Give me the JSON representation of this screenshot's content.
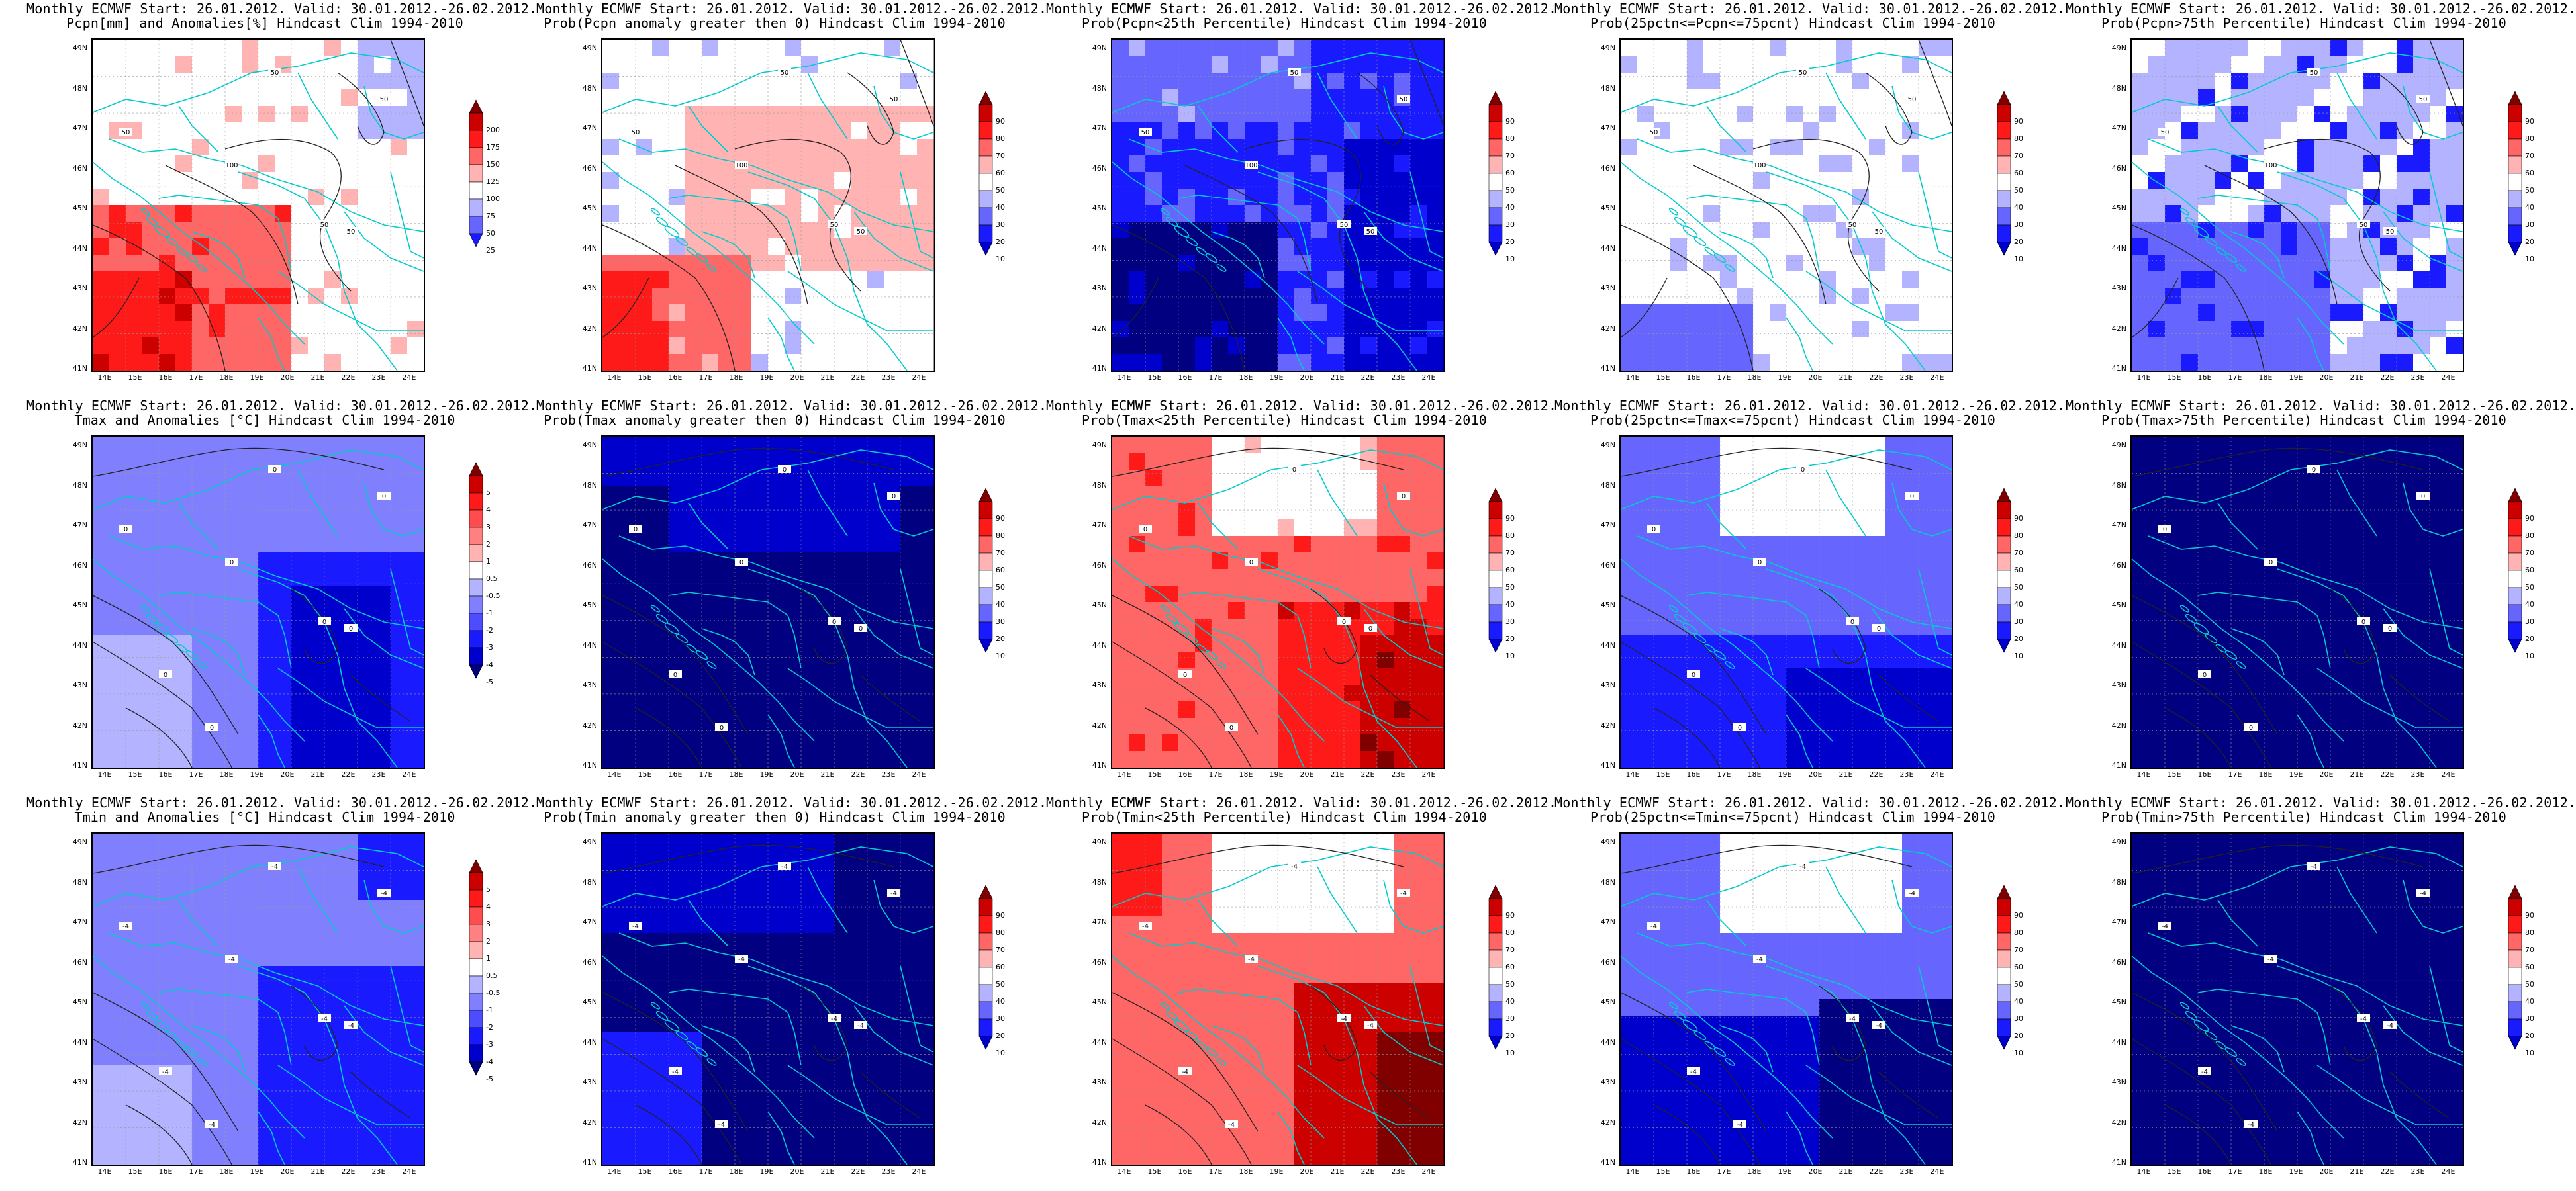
{
  "panels": [
    {
      "id": "pcpn-anom",
      "title1": "Monthly ECMWF Start: 26.01.2012. Valid: 30.01.2012.-26.02.2012.",
      "title2": "Pcpn[mm] and Anomalies[%] Hindcast Clim 1994-2010",
      "scale": "precip",
      "field": "pcpn-anom",
      "colorbar": [
        "200",
        "175",
        "150",
        "125",
        "100",
        "75",
        "50",
        "25"
      ],
      "contour_labels": [
        "50",
        "50",
        "50",
        "100",
        "50",
        "50"
      ]
    },
    {
      "id": "pcpn-prob-gt0",
      "title1": "Monthly ECMWF Start: 26.01.2012. Valid: 30.01.2012.-26.02.2012.",
      "title2": "Prob(Pcpn anomaly greater then 0) Hindcast Clim 1994-2010",
      "scale": "prob",
      "field": "pcpn-gt0",
      "colorbar": [
        "90",
        "80",
        "70",
        "60",
        "50",
        "40",
        "30",
        "20",
        "10"
      ],
      "contour_labels": [
        "50",
        "50",
        "50",
        "100",
        "50",
        "50"
      ]
    },
    {
      "id": "pcpn-prob-lt25",
      "title1": "Monthly ECMWF Start: 26.01.2012. Valid: 30.01.2012.-26.02.2012.",
      "title2": "Prob(Pcpn<25th Percentile) Hindcast Clim 1994-2010",
      "scale": "prob",
      "field": "pcpn-lt25",
      "colorbar": [
        "90",
        "80",
        "70",
        "60",
        "50",
        "40",
        "30",
        "20",
        "10"
      ],
      "contour_labels": [
        "50",
        "50",
        "50",
        "100",
        "50",
        "50"
      ]
    },
    {
      "id": "pcpn-prob-mid",
      "title1": "Monthly ECMWF Start: 26.01.2012. Valid: 30.01.2012.-26.02.2012.",
      "title2": "Prob(25pctn<=Pcpn<=75pcnt) Hindcast Clim 1994-2010",
      "scale": "prob",
      "field": "pcpn-mid",
      "colorbar": [
        "90",
        "80",
        "70",
        "60",
        "50",
        "40",
        "30",
        "20",
        "10"
      ],
      "contour_labels": [
        "50",
        "50",
        "50",
        "100",
        "50",
        "50"
      ]
    },
    {
      "id": "pcpn-prob-gt75",
      "title1": "Monthly ECMWF Start: 26.01.2012. Valid: 30.01.2012.-26.02.2012.",
      "title2": "Prob(Pcpn>75th Percentile) Hindcast Clim 1994-2010",
      "scale": "prob",
      "field": "pcpn-gt75",
      "colorbar": [
        "90",
        "80",
        "70",
        "60",
        "50",
        "40",
        "30",
        "20",
        "10"
      ],
      "contour_labels": [
        "50",
        "50",
        "50",
        "100",
        "50",
        "50"
      ]
    },
    {
      "id": "tmax-anom",
      "title1": "Monthly ECMWF Start: 26.01.2012. Valid: 30.01.2012.-26.02.2012.",
      "title2": "Tmax and Anomalies [°C] Hindcast Clim 1994-2010",
      "scale": "temp",
      "field": "tmax-anom",
      "colorbar": [
        "5",
        "4",
        "3",
        "2",
        "1",
        "0.5",
        "-0.5",
        "-1",
        "-2",
        "-3",
        "-4",
        "-5"
      ],
      "contour_labels": [
        "0",
        "0",
        "0",
        "0",
        "0",
        "0",
        "0",
        "0"
      ]
    },
    {
      "id": "tmax-prob-gt0",
      "title1": "Monthly ECMWF Start: 26.01.2012. Valid: 30.01.2012.-26.02.2012.",
      "title2": "Prob(Tmax anomaly greater then 0) Hindcast Clim 1994-2010",
      "scale": "prob",
      "field": "tmax-gt0",
      "colorbar": [
        "90",
        "80",
        "70",
        "60",
        "50",
        "40",
        "30",
        "20",
        "10"
      ],
      "contour_labels": [
        "0",
        "0",
        "0",
        "0",
        "0",
        "0",
        "0",
        "0"
      ]
    },
    {
      "id": "tmax-prob-lt25",
      "title1": "Monthly ECMWF Start: 26.01.2012. Valid: 30.01.2012.-26.02.2012.",
      "title2": "Prob(Tmax<25th Percentile) Hindcast Clim 1994-2010",
      "scale": "prob",
      "field": "tmax-lt25",
      "colorbar": [
        "90",
        "80",
        "70",
        "60",
        "50",
        "40",
        "30",
        "20",
        "10"
      ],
      "contour_labels": [
        "0",
        "0",
        "0",
        "0",
        "0",
        "0",
        "0",
        "0"
      ]
    },
    {
      "id": "tmax-prob-mid",
      "title1": "Monthly ECMWF Start: 26.01.2012. Valid: 30.01.2012.-26.02.2012.",
      "title2": "Prob(25pctn<=Tmax<=75pcnt) Hindcast Clim 1994-2010",
      "scale": "prob",
      "field": "tmax-mid",
      "colorbar": [
        "90",
        "80",
        "70",
        "60",
        "50",
        "40",
        "30",
        "20",
        "10"
      ],
      "contour_labels": [
        "0",
        "0",
        "0",
        "0",
        "0",
        "0",
        "0",
        "0"
      ]
    },
    {
      "id": "tmax-prob-gt75",
      "title1": "Monthly ECMWF Start: 26.01.2012. Valid: 30.01.2012.-26.02.2012.",
      "title2": "Prob(Tmax>75th Percentile) Hindcast Clim 1994-2010",
      "scale": "prob",
      "field": "tmax-gt75",
      "colorbar": [
        "90",
        "80",
        "70",
        "60",
        "50",
        "40",
        "30",
        "20",
        "10"
      ],
      "contour_labels": [
        "0",
        "0",
        "0",
        "0",
        "0",
        "0",
        "0",
        "0"
      ]
    },
    {
      "id": "tmin-anom",
      "title1": "Monthly ECMWF Start: 26.01.2012. Valid: 30.01.2012.-26.02.2012.",
      "title2": "Tmin and Anomalies [°C] Hindcast Clim 1994-2010",
      "scale": "temp",
      "field": "tmin-anom",
      "colorbar": [
        "5",
        "4",
        "3",
        "2",
        "1",
        "0.5",
        "-0.5",
        "-1",
        "-2",
        "-3",
        "-4",
        "-5"
      ],
      "contour_labels": [
        "-4",
        "-4",
        "-4",
        "-4",
        "-4",
        "-4",
        "-4",
        "-4"
      ]
    },
    {
      "id": "tmin-prob-gt0",
      "title1": "Monthly ECMWF Start: 26.01.2012. Valid: 30.01.2012.-26.02.2012.",
      "title2": "Prob(Tmin anomaly greater then 0) Hindcast Clim 1994-2010",
      "scale": "prob",
      "field": "tmin-gt0",
      "colorbar": [
        "90",
        "80",
        "70",
        "60",
        "50",
        "40",
        "30",
        "20",
        "10"
      ],
      "contour_labels": [
        "-4",
        "-4",
        "-4",
        "-4",
        "-4",
        "-4",
        "-4",
        "-4"
      ]
    },
    {
      "id": "tmin-prob-lt25",
      "title1": "Monthly ECMWF Start: 26.01.2012. Valid: 30.01.2012.-26.02.2012.",
      "title2": "Prob(Tmin<25th Percentile) Hindcast Clim 1994-2010",
      "scale": "prob",
      "field": "tmin-lt25",
      "colorbar": [
        "90",
        "80",
        "70",
        "60",
        "50",
        "40",
        "30",
        "20",
        "10"
      ],
      "contour_labels": [
        "-4",
        "-4",
        "-4",
        "-4",
        "-4",
        "-4",
        "-4",
        "-4"
      ]
    },
    {
      "id": "tmin-prob-mid",
      "title1": "Monthly ECMWF Start: 26.01.2012. Valid: 30.01.2012.-26.02.2012.",
      "title2": "Prob(25pctn<=Tmin<=75pcnt) Hindcast Clim 1994-2010",
      "scale": "prob",
      "field": "tmin-mid",
      "colorbar": [
        "90",
        "80",
        "70",
        "60",
        "50",
        "40",
        "30",
        "20",
        "10"
      ],
      "contour_labels": [
        "-4",
        "-4",
        "-4",
        "-4",
        "-4",
        "-4",
        "-4",
        "-4"
      ]
    },
    {
      "id": "tmin-prob-gt75",
      "title1": "Monthly ECMWF Start: 26.01.2012. Valid: 30.01.2012.-26.02.2012.",
      "title2": "Prob(Tmin>75th Percentile) Hindcast Clim 1994-2010",
      "scale": "prob",
      "field": "tmin-gt75",
      "colorbar": [
        "90",
        "80",
        "70",
        "60",
        "50",
        "40",
        "30",
        "20",
        "10"
      ],
      "contour_labels": [
        "-4",
        "-4",
        "-4",
        "-4",
        "-4",
        "-4",
        "-4",
        "-4"
      ]
    }
  ],
  "lat_ticks": [
    "49N",
    "48N",
    "47N",
    "46N",
    "45N",
    "44N",
    "43N",
    "42N",
    "41N"
  ],
  "lon_ticks": [
    "14E",
    "15E",
    "16E",
    "17E",
    "18E",
    "19E",
    "20E",
    "21E",
    "22E",
    "23E",
    "24E"
  ],
  "colors": {
    "prob": [
      "#000080",
      "#0000cd",
      "#1a1aff",
      "#6666ff",
      "#b3b3ff",
      "#ffffff",
      "#ffb3b3",
      "#ff6666",
      "#ff1a1a",
      "#cd0000",
      "#800000"
    ],
    "precip": [
      "#0000cd",
      "#1a1aff",
      "#6666ff",
      "#b3b3ff",
      "#ffffff",
      "#ffb3b3",
      "#ff6666",
      "#ff1a1a",
      "#cd0000",
      "#800000"
    ],
    "temp": [
      "#000080",
      "#0000cd",
      "#1a1aff",
      "#4d4dff",
      "#8080ff",
      "#b3b3ff",
      "#ffffff",
      "#ffb3b3",
      "#ff8080",
      "#ff4d4d",
      "#ff1a1a",
      "#cd0000",
      "#800000"
    ],
    "border": "#00cccc",
    "contour": "#222222"
  }
}
